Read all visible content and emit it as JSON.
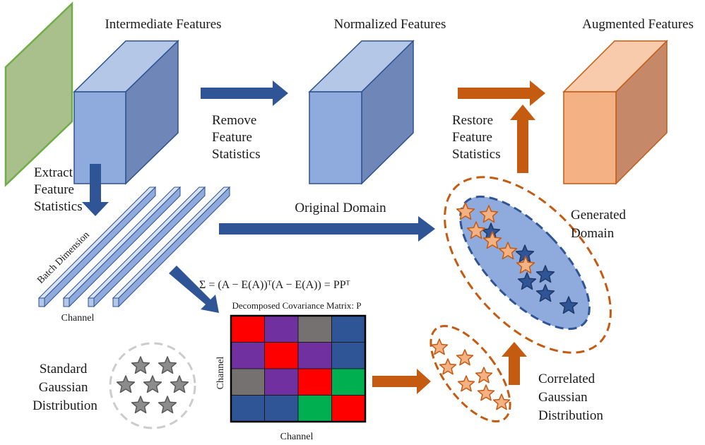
{
  "labels": {
    "intermediate": "Intermediate Features",
    "normalized": "Normalized Features",
    "augmented": "Augmented Features",
    "remove_stats": [
      "Remove",
      "Feature",
      "Statistics"
    ],
    "restore_stats": [
      "Restore",
      "Feature",
      "Statistics"
    ],
    "extract_stats": [
      "Extract",
      "Feature",
      "Statistics"
    ],
    "original_domain": "Original Domain",
    "generated_domain": [
      "Generated",
      "Domain"
    ],
    "batch_dimension": "Batch Dimension",
    "channel": "Channel",
    "decomposed": "Decomposed Covariance Matrix: P",
    "matrix_channel_x": "Channel",
    "matrix_channel_y": "Channel",
    "standard_gaussian": [
      "Standard",
      "Gaussian",
      "Distribution"
    ],
    "correlated_gaussian": [
      "Correlated",
      "Gaussian",
      "Distribution"
    ],
    "formula": "Σ = (A − E(A))ᵀ(A − E(A)) = PPᵀ"
  },
  "colors": {
    "blue_front": "#8faadc",
    "blue_top": "#b4c7e7",
    "blue_side": "#6f86b8",
    "blue_stroke": "#2f528f",
    "orange_front": "#f4b183",
    "orange_top": "#f8cbad",
    "orange_side": "#c5896a",
    "orange_stroke": "#c55a11",
    "blue_arrow": "#2f5597",
    "orange_arrow": "#c55a11",
    "green_plane": "#a9c08c",
    "green_stroke": "#70ad47",
    "gray_star": "#8c8c8c",
    "orange_star": "#f4b183",
    "blue_star": "#2f5597",
    "ellipse_fill": "#8faadc"
  },
  "matrix": {
    "rows": [
      [
        "#ff0000",
        "#7030a0",
        "#767171",
        "#2f5597"
      ],
      [
        "#7030a0",
        "#ff0000",
        "#7030a0",
        "#2f5597"
      ],
      [
        "#767171",
        "#7030a0",
        "#ff0000",
        "#00b050"
      ],
      [
        "#2f5597",
        "#2f5597",
        "#00b050",
        "#ff0000"
      ]
    ]
  }
}
